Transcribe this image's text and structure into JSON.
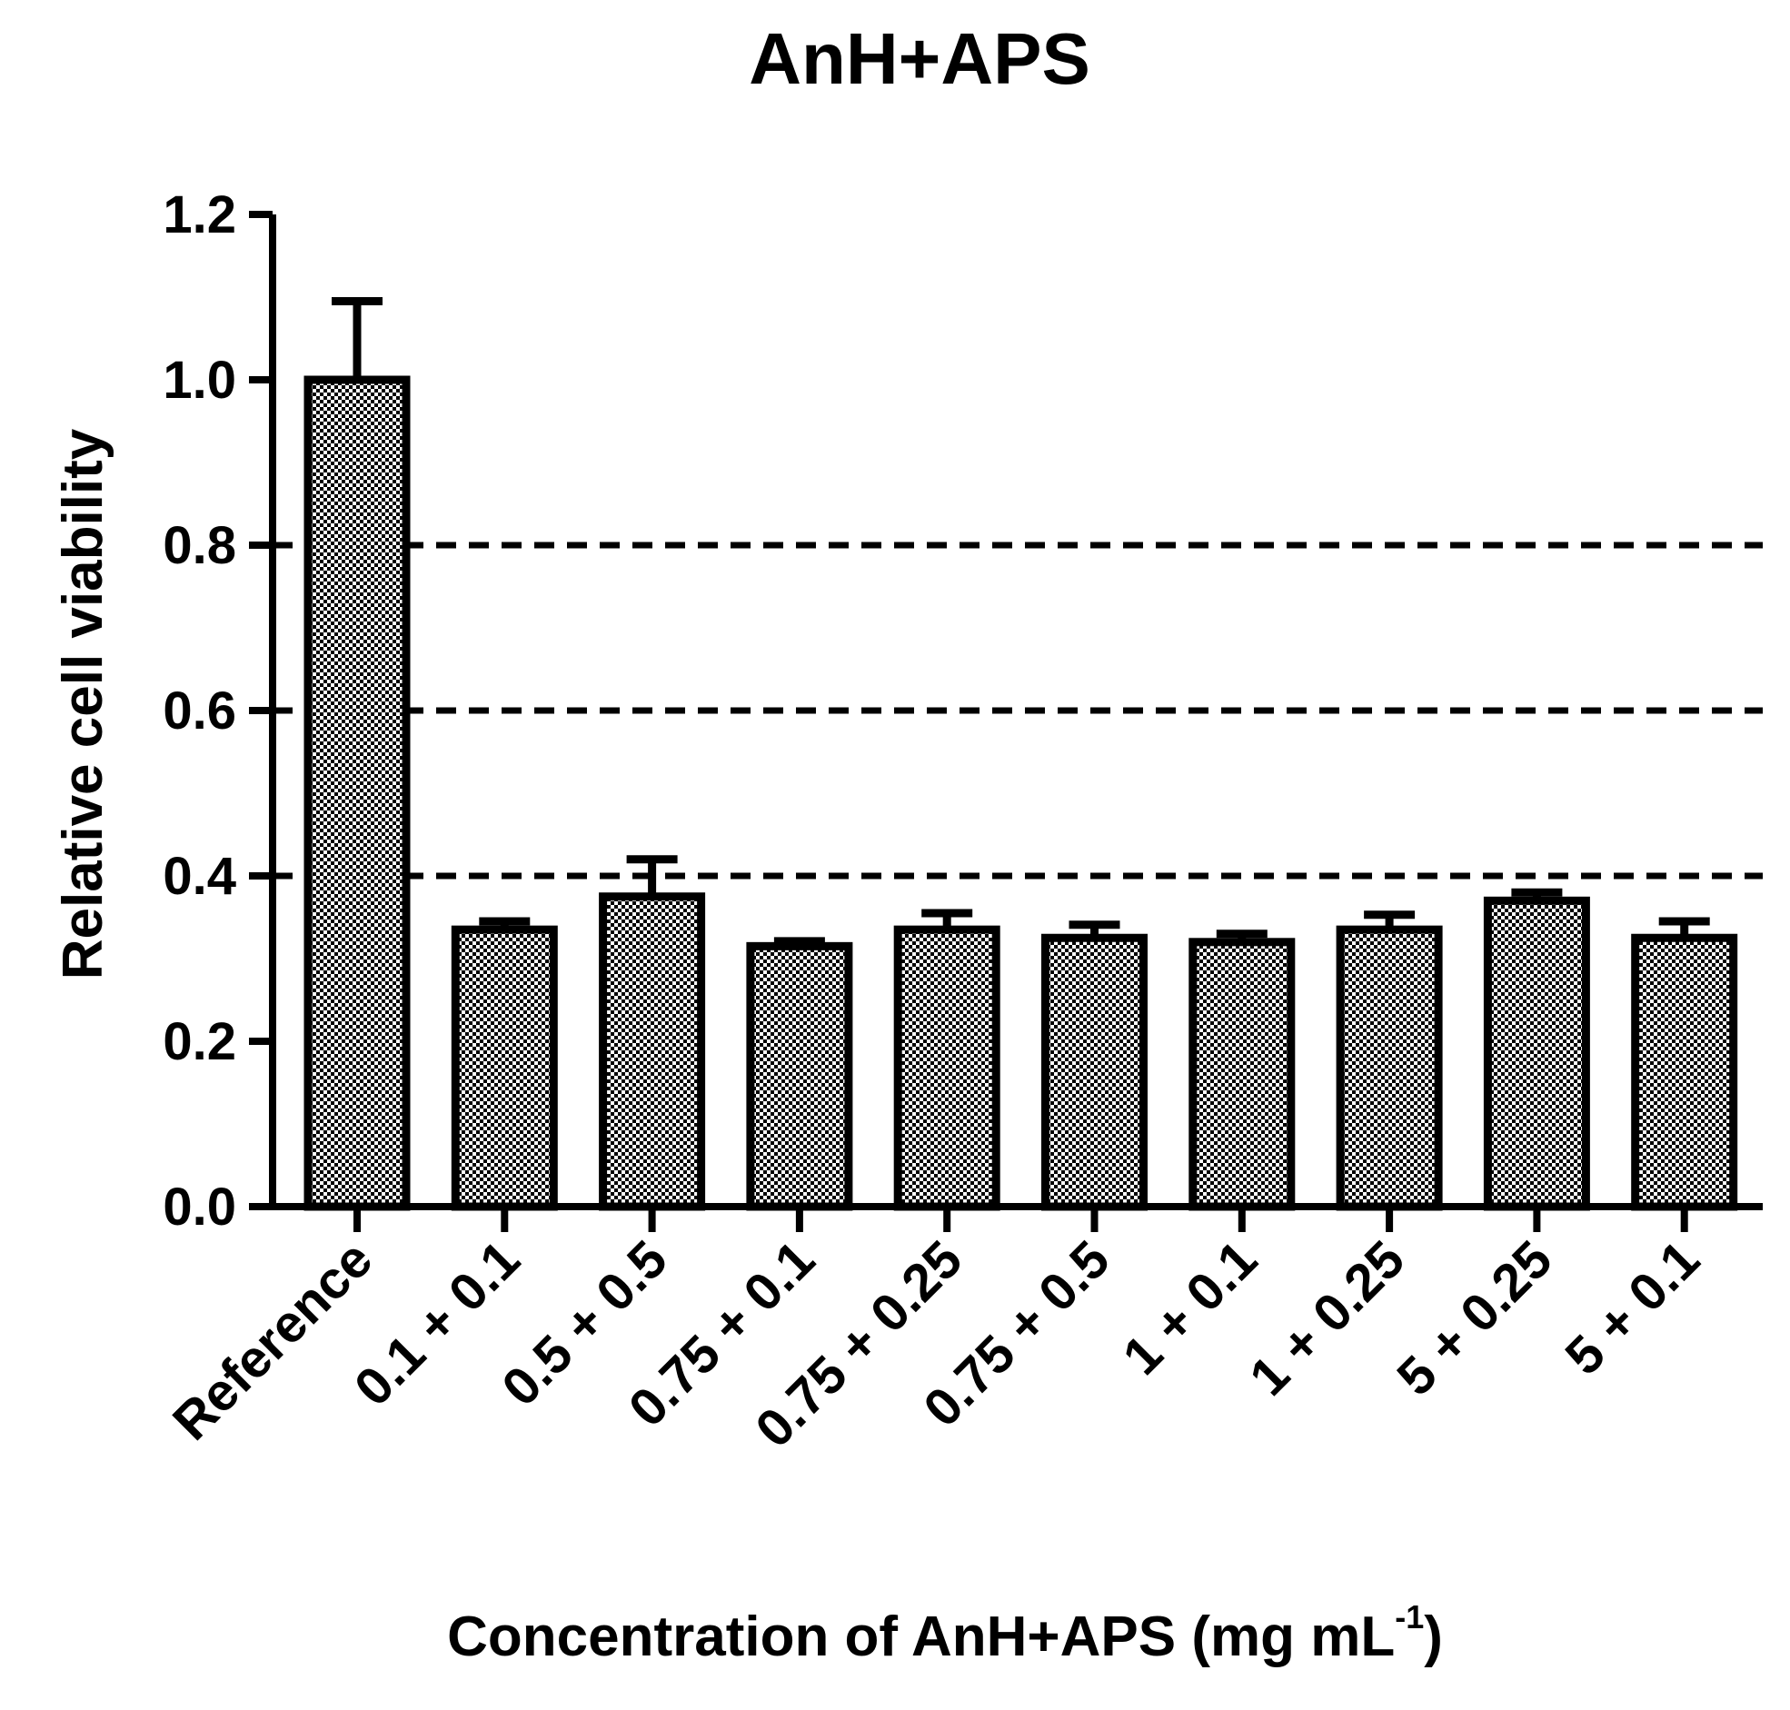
{
  "chart_data": {
    "type": "bar",
    "title": "AnH+APS",
    "xlabel_main": "Concentration of AnH+APS (mg mL",
    "xlabel_sup": "-1",
    "xlabel_end": ")",
    "ylabel": "Relative cell viability",
    "ylim": [
      0,
      1.2
    ],
    "yticks": [
      "0.0",
      "0.2",
      "0.4",
      "0.6",
      "0.8",
      "1.0",
      "1.2"
    ],
    "ytick_values": [
      0,
      0.2,
      0.4,
      0.6,
      0.8,
      1.0,
      1.2
    ],
    "reference_lines": [
      0.4,
      0.6,
      0.8
    ],
    "categories": [
      "Reference",
      "0.1 + 0.1",
      "0.5 + 0.5",
      "0.75 + 0.1",
      "0.75 + 0.25",
      "0.75 + 0.5",
      "1 + 0.1",
      "1 + 0.25",
      "5 + 0.25",
      "5 + 0.1"
    ],
    "values": [
      1.0,
      0.335,
      0.375,
      0.315,
      0.335,
      0.325,
      0.32,
      0.335,
      0.37,
      0.325
    ],
    "errors": [
      0.095,
      0.01,
      0.045,
      0.006,
      0.02,
      0.016,
      0.01,
      0.018,
      0.01,
      0.02
    ],
    "bar_fill": "checkered",
    "grid": false,
    "legend": "none"
  }
}
